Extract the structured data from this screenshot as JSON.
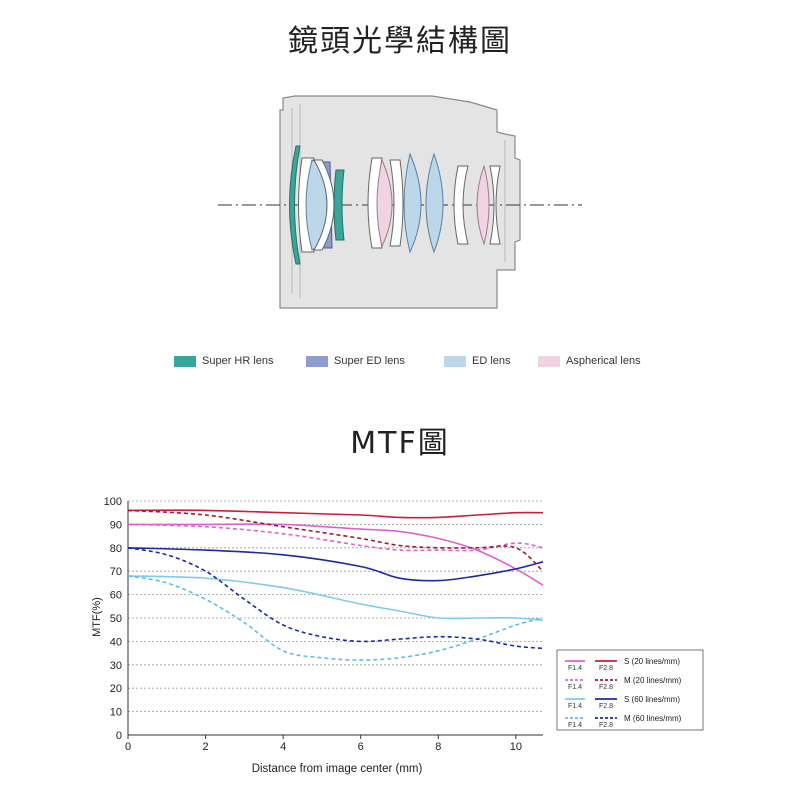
{
  "lens_section": {
    "title": "鏡頭光學結構圖",
    "legend": [
      {
        "label": "Super HR lens",
        "color": "#3aa59b"
      },
      {
        "label": "Super ED lens",
        "color": "#8e9ccf"
      },
      {
        "label": "ED lens",
        "color": "#bcd6ea"
      },
      {
        "label": "Aspherical lens",
        "color": "#f0d4e2"
      }
    ]
  },
  "mtf_section": {
    "title": "MTF圖"
  },
  "chart_data": {
    "type": "line",
    "xlabel": "Distance from image center (mm)",
    "ylabel": "MTF(%)",
    "xlim": [
      0,
      10.7
    ],
    "ylim": [
      0,
      100
    ],
    "x_ticks": [
      0,
      2,
      4,
      6,
      8,
      10
    ],
    "y_ticks": [
      0,
      10,
      20,
      30,
      40,
      50,
      60,
      70,
      80,
      90,
      100
    ],
    "grid": "horizontal dotted",
    "legend_placement": "bottom-right",
    "series": [
      {
        "name": "F1.4 S (20 lines/mm)",
        "color": "#e060d0",
        "dash": false,
        "x": [
          0,
          2,
          4,
          6,
          7,
          8,
          9,
          10,
          10.7
        ],
        "y": [
          90,
          90,
          90,
          88,
          87,
          84,
          79,
          71,
          64
        ]
      },
      {
        "name": "F1.4 M (20 lines/mm)",
        "color": "#e060d0",
        "dash": true,
        "x": [
          0,
          2,
          4,
          6,
          7,
          8,
          9,
          10,
          10.7
        ],
        "y": [
          90,
          89,
          86,
          81,
          79,
          79,
          79,
          82,
          80
        ]
      },
      {
        "name": "F2.8 S (20 lines/mm)",
        "color": "#c8203c",
        "dash": false,
        "x": [
          0,
          2,
          4,
          6,
          7,
          8,
          9,
          10,
          10.7
        ],
        "y": [
          96,
          96,
          95,
          94,
          93,
          93,
          94,
          95,
          95
        ]
      },
      {
        "name": "F2.8 M (20 lines/mm)",
        "color": "#a01a2a",
        "dash": true,
        "x": [
          0,
          2,
          4,
          6,
          7,
          8,
          9,
          10,
          10.7
        ],
        "y": [
          96,
          94,
          89,
          84,
          81,
          80,
          80,
          80,
          70
        ]
      },
      {
        "name": "F1.4 S (60 lines/mm)",
        "color": "#7ecbee",
        "dash": false,
        "x": [
          0,
          2,
          4,
          6,
          7,
          8,
          9,
          10,
          10.7
        ],
        "y": [
          68,
          67,
          63,
          56,
          53,
          50,
          50,
          50,
          49
        ]
      },
      {
        "name": "F1.4 M (60 lines/mm)",
        "color": "#60bce8",
        "dash": true,
        "x": [
          0,
          1,
          2,
          3,
          4,
          5,
          6,
          7,
          8,
          9,
          10,
          10.7
        ],
        "y": [
          68,
          65,
          58,
          48,
          36,
          33,
          32,
          33,
          36,
          41,
          47,
          50
        ]
      },
      {
        "name": "F2.8 S (60 lines/mm)",
        "color": "#1a2aa0",
        "dash": false,
        "x": [
          0,
          2,
          4,
          6,
          7,
          8,
          9,
          10,
          10.7
        ],
        "y": [
          80,
          79,
          77,
          72,
          67,
          66,
          68,
          71,
          74
        ]
      },
      {
        "name": "F2.8 M (60 lines/mm)",
        "color": "#1a2aa0",
        "dash": true,
        "x": [
          0,
          1,
          2,
          3,
          4,
          5,
          6,
          7,
          8,
          9,
          10,
          10.7
        ],
        "y": [
          80,
          77,
          70,
          58,
          47,
          42,
          40,
          41,
          42,
          41,
          38,
          37
        ]
      }
    ],
    "legend_rows": [
      {
        "left": "F1.4",
        "right": "F2.8",
        "label": "S (20 lines/mm)",
        "left_color": "#e060d0",
        "right_color": "#c8203c",
        "dash": false
      },
      {
        "left": "F1.4",
        "right": "F2.8",
        "label": "M (20 lines/mm)",
        "left_color": "#e060d0",
        "right_color": "#a01a2a",
        "dash": true
      },
      {
        "left": "F1.4",
        "right": "F2.8",
        "label": "S (60 lines/mm)",
        "left_color": "#7ecbee",
        "right_color": "#1a2aa0",
        "dash": false
      },
      {
        "left": "F1.4",
        "right": "F2.8",
        "label": "M (60 lines/mm)",
        "left_color": "#60bce8",
        "right_color": "#1a2aa0",
        "dash": true
      }
    ]
  }
}
